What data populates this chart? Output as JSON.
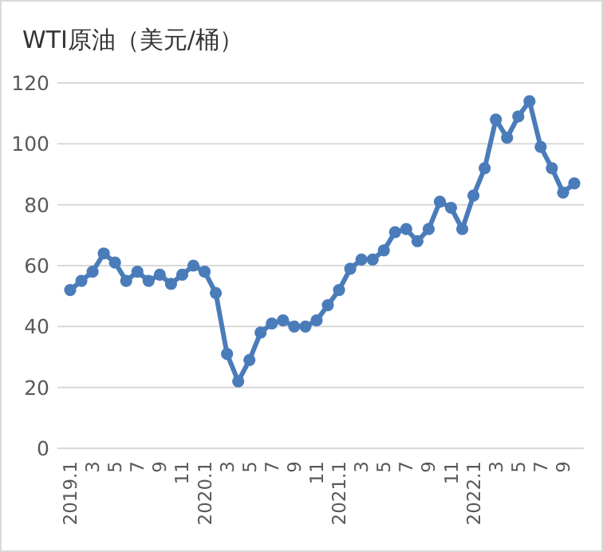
{
  "chart_data": {
    "type": "line",
    "title": "WTI原油（美元/桶）",
    "categories": [
      "2019.1",
      null,
      "3",
      null,
      "5",
      null,
      "7",
      null,
      "9",
      null,
      "11",
      null,
      "2020.1",
      null,
      "3",
      null,
      "5",
      null,
      "7",
      null,
      "9",
      null,
      "11",
      null,
      "2021.1",
      null,
      "3",
      null,
      "5",
      null,
      "7",
      null,
      "9",
      null,
      "11",
      null,
      "2022.1",
      null,
      "3",
      null,
      "5",
      null,
      "7",
      null,
      "9",
      null
    ],
    "series": [
      {
        "color": "#4a7cba",
        "values": [
          52,
          55,
          58,
          64,
          61,
          55,
          58,
          55,
          57,
          54,
          57,
          60,
          58,
          51,
          31,
          22,
          29,
          38,
          41,
          42,
          40,
          40,
          42,
          47,
          52,
          59,
          62,
          62,
          65,
          71,
          72,
          68,
          72,
          81,
          79,
          72,
          83,
          92,
          108,
          102,
          109,
          114,
          99,
          92,
          84,
          87
        ]
      }
    ],
    "ylim": [
      0,
      120
    ],
    "yticks": [
      0,
      20,
      40,
      60,
      80,
      100,
      120
    ],
    "grid": "y",
    "marker": "circle",
    "line_style": "solid"
  }
}
